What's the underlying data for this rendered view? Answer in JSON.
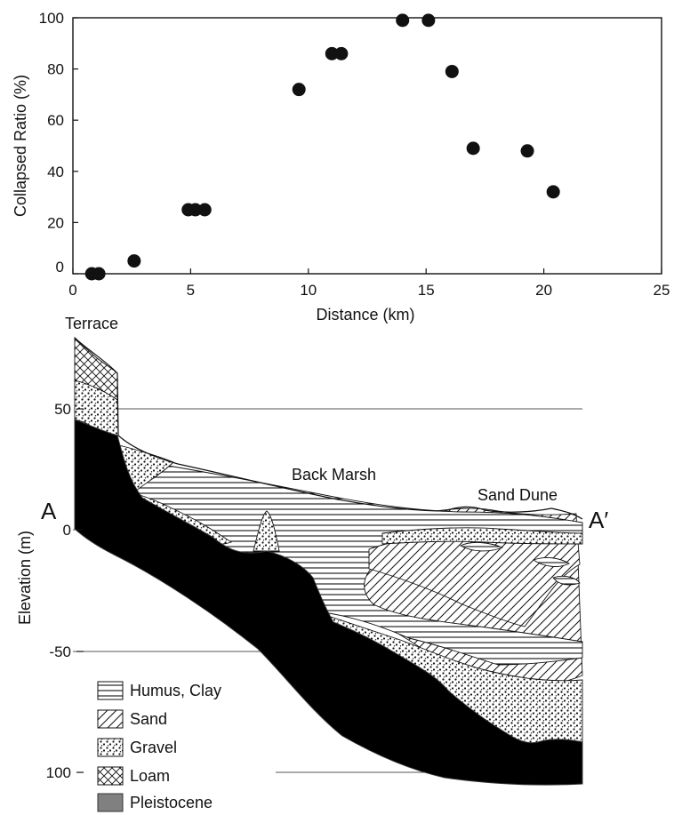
{
  "chart_data": [
    {
      "type": "scatter",
      "title": "",
      "xlabel": "Distance (km)",
      "ylabel": "Collapsed Ratio (%)",
      "xlim": [
        0,
        25
      ],
      "ylim": [
        0,
        100
      ],
      "xticks": [
        "0",
        "5",
        "10",
        "15",
        "20",
        "25"
      ],
      "yticks": [
        "0",
        "20",
        "40",
        "60",
        "80",
        "100"
      ],
      "grid": false,
      "points": [
        {
          "x": 0.8,
          "y": 0
        },
        {
          "x": 1.1,
          "y": 0
        },
        {
          "x": 2.6,
          "y": 5
        },
        {
          "x": 4.9,
          "y": 25
        },
        {
          "x": 5.2,
          "y": 25
        },
        {
          "x": 5.6,
          "y": 25
        },
        {
          "x": 9.6,
          "y": 72
        },
        {
          "x": 11.0,
          "y": 86
        },
        {
          "x": 11.4,
          "y": 86
        },
        {
          "x": 14.0,
          "y": 99
        },
        {
          "x": 15.1,
          "y": 99
        },
        {
          "x": 16.1,
          "y": 79
        },
        {
          "x": 17.0,
          "y": 49
        },
        {
          "x": 19.3,
          "y": 48
        },
        {
          "x": 20.4,
          "y": 32
        }
      ],
      "marker_color": "#111111"
    },
    {
      "type": "cross-section",
      "ylabel": "Elevation (m)",
      "yticks": [
        "50",
        "0",
        "-50",
        "100"
      ],
      "annotations": {
        "terrace": "Terrace",
        "back_marsh": "Back Marsh",
        "sand_dune": "Sand Dune",
        "end_a": "A",
        "end_a_prime": "A′"
      },
      "legend": [
        {
          "label": "Humus, Clay",
          "pattern": "horizontal-lines"
        },
        {
          "label": "Sand",
          "pattern": "diagonal-lines"
        },
        {
          "label": "Gravel",
          "pattern": "dots"
        },
        {
          "label": "Loam",
          "pattern": "cross-hatch"
        },
        {
          "label": "Pleistocene",
          "pattern": "solid-gray"
        }
      ],
      "colors": {
        "pleistocene": "#808080",
        "ink": "#111111"
      }
    }
  ]
}
